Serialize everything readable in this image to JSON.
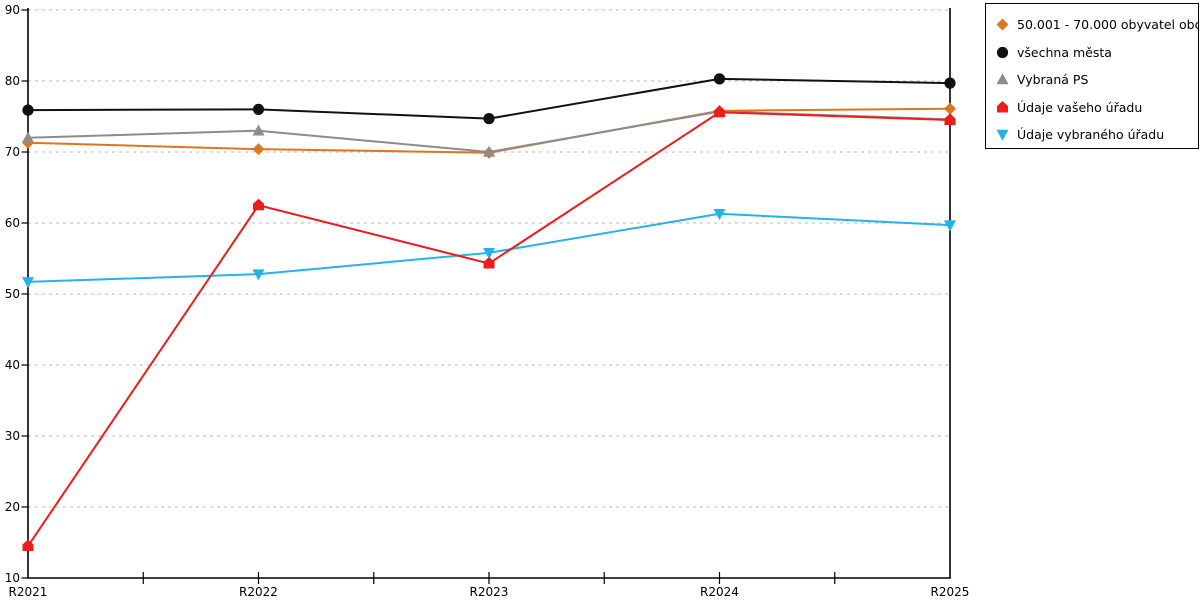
{
  "chart_data": {
    "type": "line",
    "title": "",
    "xlabel": "",
    "ylabel": "",
    "x_categories": [
      "R2021",
      "R2022",
      "R2023",
      "R2024",
      "R2025"
    ],
    "ylim": [
      10,
      90
    ],
    "y_ticks": [
      "10",
      "20",
      "30",
      "40",
      "50",
      "60",
      "70",
      "80",
      "90"
    ],
    "grid": "horizontal dashed gridlines at every 10 units",
    "legend_position": "outside top-right, boxed",
    "series": [
      {
        "id": "band-50001-70000",
        "name": "50.001 - 70.000 obyvatel obc...",
        "color": "#e0751e",
        "marker": "diamond",
        "values": [
          71.3,
          70.4,
          69.9,
          75.8,
          76.1
        ]
      },
      {
        "id": "vsechna-mesta",
        "name": "všechna města",
        "color": "#111111",
        "marker": "circle",
        "values": [
          75.9,
          76.0,
          74.7,
          80.3,
          79.7
        ]
      },
      {
        "id": "vybrana-ps",
        "name": "Vybraná PS",
        "color": "#8c8c8c",
        "marker": "triangle-up",
        "values": [
          72.0,
          73.0,
          70.0,
          75.7,
          74.6
        ]
      },
      {
        "id": "udaje-vaseho-uradu",
        "name": "Údaje vašeho úřadu",
        "color": "#ee1c1c",
        "marker": "pentagon-up",
        "values": [
          14.5,
          62.5,
          54.3,
          75.6,
          74.5
        ]
      },
      {
        "id": "udaje-vybraneho-uradu",
        "name": "Údaje vybraného úřadu",
        "color": "#25b2ea",
        "marker": "triangle-down",
        "values": [
          51.7,
          52.8,
          55.8,
          61.3,
          59.7
        ]
      }
    ],
    "colors": {
      "axis": "#000000",
      "grid": "#c8c8c8",
      "background": "#ffffff"
    }
  }
}
